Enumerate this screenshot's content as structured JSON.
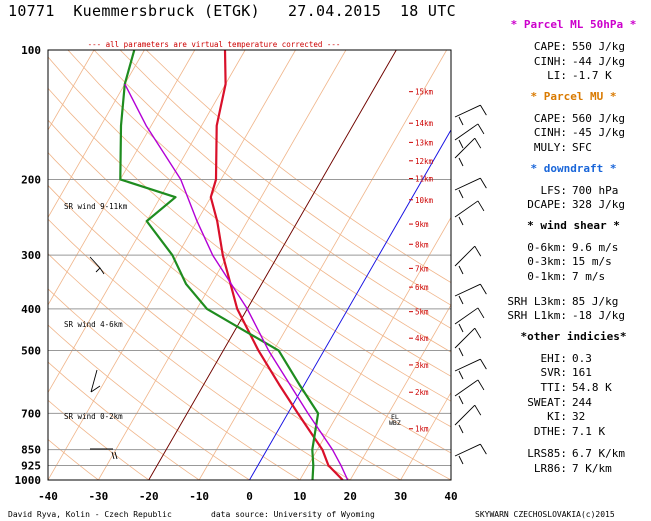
{
  "header": {
    "station": "10771",
    "name": "Kuemmersbruck (ETGK)",
    "date": "27.04.2015",
    "time": "18 UTC"
  },
  "note": "--- all parameters are virtual temperature corrected ---",
  "colors": {
    "temp": "#d9102a",
    "dew": "#1f8c1f",
    "parcel": "#b300d6",
    "virtual": "#ff3355",
    "dry_adiabat": "#f0b58a",
    "isotherm_zero": "#6b0000",
    "isotherm_minus20": "#8a0018",
    "isotherm_blue": "#1010ee",
    "grid": "#999999",
    "header_ml": "#cc00cc",
    "header_mu": "#d97a00",
    "header_downdraft": "#1a66d9",
    "height_label": "#cc0000",
    "wind_barb": "#000000",
    "wind_barb_alt": "#d9102a"
  },
  "chart_data": {
    "type": "line",
    "x_axis": {
      "label": "",
      "range": [
        -40,
        40
      ],
      "ticks": [
        "-40",
        "-30",
        "-20",
        "-10",
        "0",
        "10",
        "20",
        "30",
        "40"
      ]
    },
    "y_axis": {
      "label": "",
      "scale": "log",
      "range": [
        1000,
        100
      ],
      "ticks": [
        "100",
        "200",
        "300",
        "400",
        "500",
        "700",
        "850",
        "925",
        "1000"
      ]
    },
    "series": [
      {
        "key": "temperature",
        "points": [
          [
            1000,
            18.5
          ],
          [
            925,
            14
          ],
          [
            850,
            11
          ],
          [
            700,
            2
          ],
          [
            600,
            -5
          ],
          [
            500,
            -13
          ],
          [
            400,
            -22
          ],
          [
            300,
            -31
          ],
          [
            250,
            -36
          ],
          [
            220,
            -40
          ],
          [
            200,
            -41
          ],
          [
            150,
            -47
          ],
          [
            120,
            -50
          ],
          [
            100,
            -54
          ]
        ]
      },
      {
        "key": "dewpoint",
        "points": [
          [
            1000,
            12.5
          ],
          [
            925,
            11
          ],
          [
            850,
            9
          ],
          [
            700,
            6
          ],
          [
            600,
            -1
          ],
          [
            500,
            -9
          ],
          [
            450,
            -18
          ],
          [
            400,
            -28
          ],
          [
            350,
            -35
          ],
          [
            300,
            -41
          ],
          [
            250,
            -50
          ],
          [
            220,
            -47
          ],
          [
            200,
            -60
          ],
          [
            150,
            -66
          ],
          [
            120,
            -70
          ],
          [
            100,
            -72
          ]
        ]
      },
      {
        "key": "parcel",
        "points": [
          [
            1000,
            19.5
          ],
          [
            925,
            16.5
          ],
          [
            850,
            13
          ],
          [
            700,
            4
          ],
          [
            500,
            -11
          ],
          [
            400,
            -20
          ],
          [
            300,
            -33
          ],
          [
            250,
            -40
          ],
          [
            200,
            -48
          ],
          [
            150,
            -61
          ],
          [
            120,
            -70
          ]
        ]
      }
    ],
    "height_labels": [
      "15km",
      "14km",
      "13km",
      "12km",
      "11km",
      "10km",
      "9km",
      "8km",
      "7km",
      "6km",
      "5km",
      "4km",
      "3km",
      "2km",
      "1km"
    ],
    "wind_shear_labels": [
      "SR wind 9-11km",
      "SR wind 4-6km",
      "SR wind 0-2km"
    ],
    "level_marks": [
      "EL",
      "WBZ"
    ]
  },
  "panel": {
    "ml": {
      "title": "* Parcel ML 50hPa *",
      "rows": [
        [
          "CAPE:",
          "550 J/kg"
        ],
        [
          "CINH:",
          "-44 J/kg"
        ],
        [
          "LI:",
          "-1.7 K"
        ]
      ]
    },
    "mu": {
      "title": "* Parcel MU *",
      "rows": [
        [
          "CAPE:",
          "560 J/kg"
        ],
        [
          "CINH:",
          "-45 J/kg"
        ],
        [
          "MULY:",
          "SFC"
        ]
      ]
    },
    "downdraft": {
      "title": "* downdraft *",
      "rows": [
        [
          "LFS:",
          "700 hPa"
        ],
        [
          "DCAPE:",
          "328 J/kg"
        ]
      ]
    },
    "shear": {
      "title": "* wind shear *",
      "rows": [
        [
          "0-6km:",
          "9.6 m/s"
        ],
        [
          "0-3km:",
          "15 m/s"
        ],
        [
          "0-1km:",
          "7 m/s"
        ]
      ]
    },
    "srh": {
      "rows": [
        [
          "SRH L3km:",
          "85 J/kg"
        ],
        [
          "SRH L1km:",
          "-18 J/kg"
        ]
      ]
    },
    "indices": {
      "title": "*other indicies*",
      "rows": [
        [
          "EHI:",
          "0.3"
        ],
        [
          "SVR:",
          "161"
        ],
        [
          "TTI:",
          "54.8 K"
        ],
        [
          "SWEAT:",
          "244"
        ],
        [
          "KI:",
          "32"
        ],
        [
          "DTHE:",
          "7.1 K"
        ]
      ]
    },
    "lapse": {
      "rows": [
        [
          "LRS85:",
          "6.7 K/km"
        ],
        [
          "LR86:",
          "7 K/km"
        ]
      ]
    }
  },
  "footer": {
    "author": "David Ryva, Kolin - Czech Republic",
    "source": "data source: University of Wyoming",
    "credit": "SKYWARN CZECHOSLOVAKIA(c)2015"
  }
}
